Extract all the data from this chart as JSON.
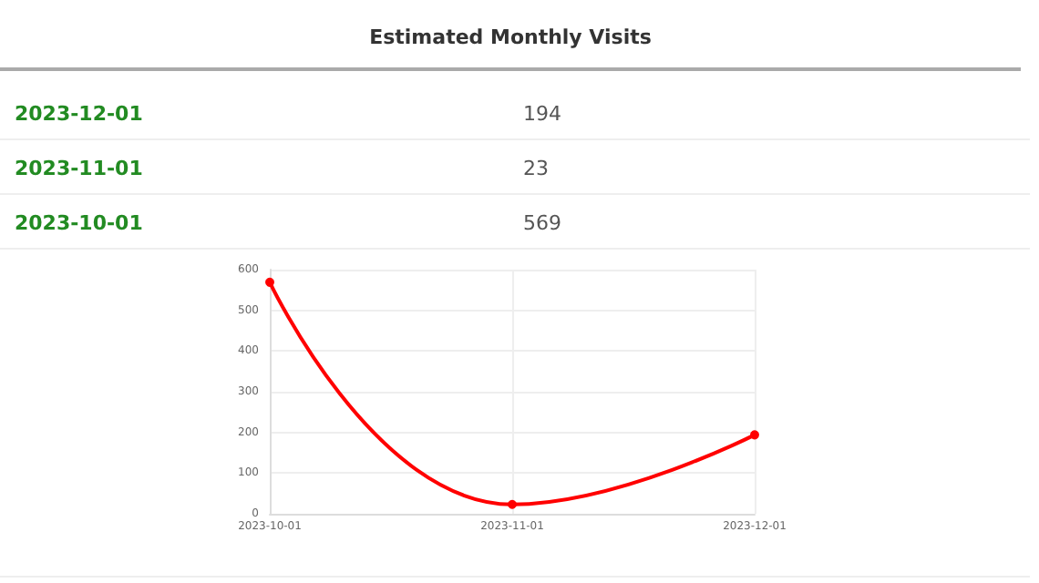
{
  "chart_data": [
    {
      "type": "other",
      "title": "Estimated Monthly Visits",
      "annotations": [
        "2023-12-01",
        "194",
        "2023-11-01",
        "23",
        "2023-10-01",
        "569"
      ]
    },
    {
      "type": "line",
      "categories": [
        "2023-10-01",
        "2023-11-01",
        "2023-12-01"
      ],
      "series": [
        {
          "color": "#ff0000",
          "values": [
            569,
            23,
            194
          ]
        }
      ],
      "ylim": [
        0,
        600
      ],
      "yticks": [
        0,
        100,
        200,
        300,
        400,
        500,
        600
      ],
      "grid": true,
      "marker": "circle",
      "line_style": "solid"
    }
  ]
}
